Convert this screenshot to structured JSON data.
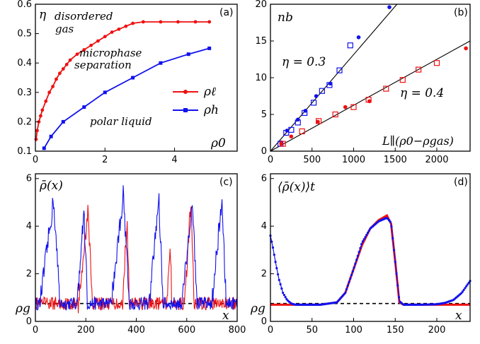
{
  "chart_data": [
    {
      "panel_label": "(a)",
      "type": "line",
      "ylabel": "η",
      "xlabel": "ρ0",
      "xlim": [
        0,
        5.8
      ],
      "ylim": [
        0.1,
        0.6
      ],
      "xticks": [
        "0",
        "2",
        "4"
      ],
      "yticks": [
        "0.1",
        "0.2",
        "0.3",
        "0.4",
        "0.5",
        "0.6"
      ],
      "annotations": [
        {
          "text": "disordered",
          "text2": "gas"
        },
        {
          "text": "microphase",
          "text2": "separation"
        },
        {
          "text": "polar liquid"
        }
      ],
      "legend_position": "center-right",
      "series": [
        {
          "name": "ρℓ",
          "color": "#ee1111",
          "marker": "circle",
          "x": [
            0.02,
            0.05,
            0.1,
            0.15,
            0.2,
            0.3,
            0.4,
            0.5,
            0.6,
            0.7,
            0.8,
            0.9,
            1.0,
            1.2,
            1.4,
            1.6,
            1.8,
            2.0,
            2.2,
            2.4,
            2.6,
            2.8,
            3.1,
            3.6,
            4.1,
            4.6,
            5.0
          ],
          "y": [
            0.14,
            0.17,
            0.2,
            0.22,
            0.24,
            0.27,
            0.3,
            0.32,
            0.345,
            0.365,
            0.38,
            0.395,
            0.41,
            0.43,
            0.445,
            0.46,
            0.475,
            0.49,
            0.505,
            0.515,
            0.525,
            0.535,
            0.54,
            0.54,
            0.54,
            0.54,
            0.54
          ]
        },
        {
          "name": "ρh",
          "color": "#1111ee",
          "marker": "square",
          "x": [
            0.25,
            0.45,
            0.8,
            1.4,
            2.0,
            2.8,
            3.6,
            4.4,
            5.0
          ],
          "y": [
            0.11,
            0.15,
            0.2,
            0.25,
            0.3,
            0.35,
            0.4,
            0.43,
            0.45
          ]
        }
      ]
    },
    {
      "panel_label": "(b)",
      "type": "scatter",
      "ylabel": "nb",
      "xlabel": "L∥(ρ0−ρgas)",
      "xlim": [
        0,
        2400
      ],
      "ylim": [
        0,
        20
      ],
      "xticks": [
        "0",
        "500",
        "1000",
        "1500",
        "2000"
      ],
      "yticks": [
        "0",
        "5",
        "10",
        "15",
        "20"
      ],
      "annotations": [
        {
          "text": "η = 0.3"
        },
        {
          "text": "η = 0.4"
        }
      ],
      "fit_lines": [
        {
          "slope": 0.01315,
          "intercept": 0,
          "color": "#000000"
        },
        {
          "slope": 0.00625,
          "intercept": 0,
          "color": "#000000"
        }
      ],
      "series": [
        {
          "name": "η=0.3 dots",
          "color": "#1111ee",
          "marker": "circle",
          "x": [
            130,
            200,
            330,
            420,
            550,
            720,
            1060,
            1430
          ],
          "y": [
            1.2,
            2.8,
            4.3,
            5.5,
            7.5,
            9.2,
            15.5,
            19.6
          ]
        },
        {
          "name": "η=0.3 squares",
          "color": "#1111ee",
          "marker": "square-open",
          "x": [
            120,
            190,
            250,
            330,
            410,
            520,
            620,
            710,
            830,
            960
          ],
          "y": [
            1.0,
            2.5,
            2.9,
            3.9,
            5.2,
            6.6,
            8.2,
            9.0,
            11.0,
            14.4
          ]
        },
        {
          "name": "η=0.4 dots",
          "color": "#ee1111",
          "marker": "circle",
          "x": [
            130,
            250,
            570,
            900,
            1190,
            2350
          ],
          "y": [
            1.0,
            2.0,
            4.0,
            6.0,
            6.8,
            14.0
          ]
        },
        {
          "name": "η=0.4 squares",
          "color": "#ee1111",
          "marker": "square-open",
          "x": [
            150,
            380,
            580,
            780,
            1000,
            1180,
            1390,
            1590,
            1780,
            2000
          ],
          "y": [
            1.0,
            2.7,
            4.1,
            5.0,
            6.0,
            7.0,
            8.5,
            9.7,
            11.1,
            12.0
          ]
        }
      ]
    },
    {
      "panel_label": "(c)",
      "type": "line",
      "ylabel": "ρ̄(x)",
      "xlabel": "x",
      "xlim": [
        0,
        800
      ],
      "ylim": [
        0,
        6.2
      ],
      "xticks": [
        "0",
        "200",
        "400",
        "600",
        "800"
      ],
      "yticks": [
        "0",
        "2",
        "4",
        "6"
      ],
      "extra_tick": "ρg",
      "rho_g": 0.75,
      "series": [
        {
          "name": "red",
          "color": "#ee1111",
          "bands": [
            [
              170,
              225,
              4.6
            ],
            [
              345,
              372,
              4.3
            ],
            [
              522,
              540,
              3.5
            ],
            [
              592,
              628,
              5.3
            ]
          ]
        },
        {
          "name": "blue",
          "color": "#1111ee",
          "bands": [
            [
              18,
              95,
              5.1
            ],
            [
              165,
              205,
              4.6
            ],
            [
              300,
              370,
              5.4
            ],
            [
              452,
              505,
              5.2
            ],
            [
              580,
              640,
              5.0
            ],
            [
              700,
              755,
              5.1
            ]
          ]
        }
      ]
    },
    {
      "panel_label": "(d)",
      "type": "line",
      "ylabel": "⟨ρ̄(x)⟩t",
      "xlabel": "x",
      "xlim": [
        0,
        240
      ],
      "ylim": [
        0,
        6.2
      ],
      "xticks": [
        "0",
        "50",
        "100",
        "150",
        "200"
      ],
      "yticks": [
        "0",
        "2",
        "4",
        "6"
      ],
      "extra_tick": "ρg",
      "rho_g": 0.75,
      "series": [
        {
          "name": "red",
          "color": "#ee1111",
          "x": [
            0,
            20,
            60,
            80,
            90,
            100,
            110,
            120,
            130,
            140,
            145,
            150,
            155,
            160,
            200,
            240
          ],
          "y": [
            0.7,
            0.7,
            0.7,
            0.8,
            1.2,
            2.2,
            3.2,
            3.9,
            4.25,
            4.45,
            4.1,
            2.5,
            0.8,
            0.7,
            0.7,
            0.7
          ]
        },
        {
          "name": "blue",
          "color": "#1111ee",
          "x": [
            0,
            3,
            6,
            10,
            15,
            20,
            25,
            30,
            60,
            80,
            90,
            100,
            110,
            120,
            130,
            140,
            145,
            150,
            155,
            160,
            180,
            200,
            210,
            220,
            230,
            240
          ],
          "y": [
            3.6,
            3.1,
            2.5,
            1.8,
            1.2,
            0.9,
            0.75,
            0.7,
            0.7,
            0.8,
            1.2,
            2.2,
            3.3,
            3.9,
            4.2,
            4.35,
            4.15,
            2.5,
            0.85,
            0.7,
            0.7,
            0.72,
            0.78,
            0.9,
            1.2,
            1.7
          ]
        }
      ]
    }
  ]
}
